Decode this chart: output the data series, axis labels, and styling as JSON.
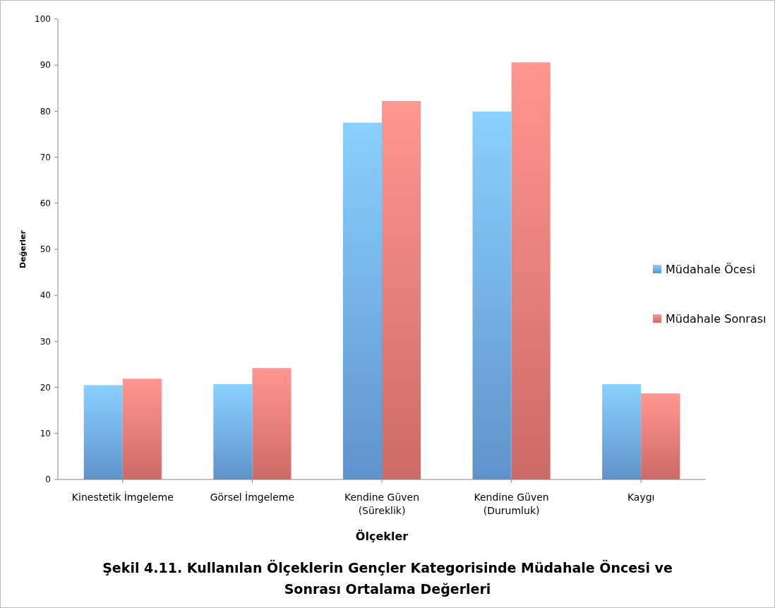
{
  "chart_data": {
    "type": "bar",
    "title": "Şekil 4.11.  Kullanılan Ölçeklerin Gençler Kategorisinde Müdahale Öncesi ve Sonrası Ortalama Değerleri",
    "xlabel": "Ölçekler",
    "ylabel": "Değerler",
    "categories": [
      "Kinestetik İmgeleme",
      "Görsel İmgeleme",
      "Kendine Güven (Süreklik)",
      "Kendine Güven (Durumluk)",
      "Kaygı"
    ],
    "series": [
      {
        "name": "Müdahale Öcesi",
        "color": "#6fa9ea",
        "values": [
          20.5,
          20.7,
          77.5,
          79.9,
          20.7
        ]
      },
      {
        "name": "Müdahale Sonrası",
        "color": "#ec7a74",
        "values": [
          21.9,
          24.2,
          82.2,
          90.6,
          18.7
        ]
      }
    ],
    "ylim": [
      0,
      100
    ],
    "yticks": [
      0,
      10,
      20,
      30,
      40,
      50,
      60,
      70,
      80,
      90,
      100
    ],
    "legend": "right"
  }
}
